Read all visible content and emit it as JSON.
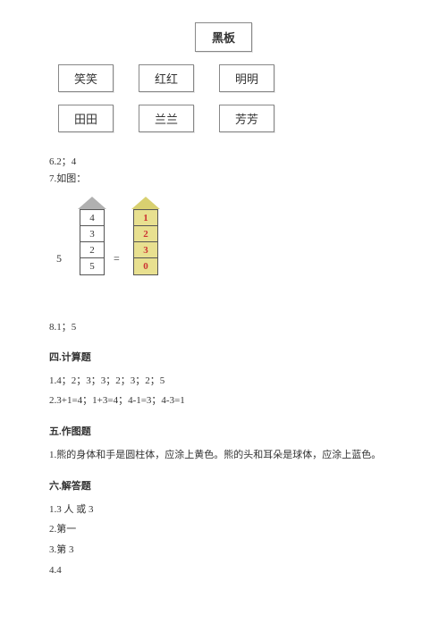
{
  "seating": {
    "blackboard": "黑板",
    "row1": [
      "笑笑",
      "红红",
      "明明"
    ],
    "row2": [
      "田田",
      "兰兰",
      "芳芳"
    ]
  },
  "answers": {
    "a6": "6.2；4",
    "a7_label": "7.如图：",
    "fig7": {
      "left_cells": [
        "4",
        "3",
        "2",
        "5"
      ],
      "right_cells": [
        "1",
        "2",
        "3",
        "0"
      ],
      "five": "5",
      "eq": "="
    },
    "a8": "8.1；5"
  },
  "sec4": {
    "title": "四.计算题",
    "l1": "1.4；2；3；3；2；3；2；5",
    "l2": "2.3+1=4；1+3=4；4-1=3；4-3=1"
  },
  "sec5": {
    "title": "五.作图题",
    "l1": "1.熊的身体和手是圆柱体，应涂上黄色。熊的头和耳朵是球体，应涂上蓝色。"
  },
  "sec6": {
    "title": "六.解答题",
    "l1": "1.3 人 或 3",
    "l2": "2.第一",
    "l3": "3.第 3",
    "l4": "4.4"
  }
}
